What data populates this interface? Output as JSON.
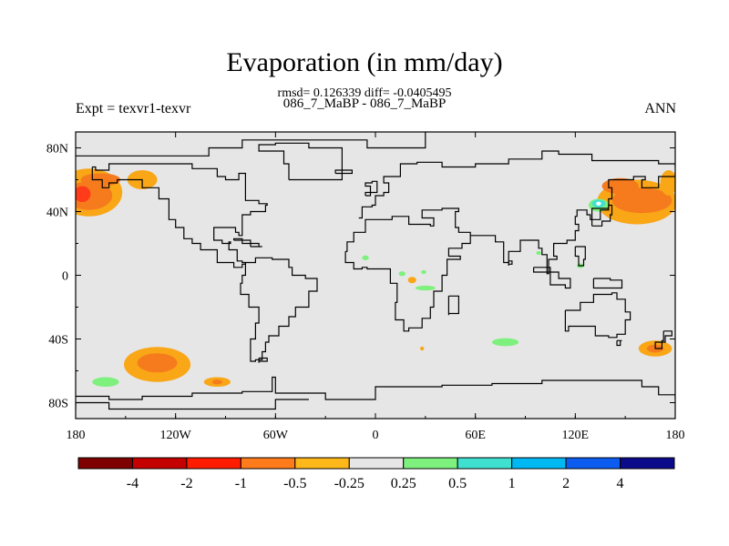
{
  "title": "Evaporation (in mm/day)",
  "stats_line": "rmsd= 0.126339 diff= -0.0405495",
  "subtitle": "086_7_MaBP - 086_7_MaBP",
  "experiment_label": "Expt = texvr1-texvr",
  "season_label": "ANN",
  "map": {
    "lon_range": [
      -180,
      180
    ],
    "lat_range": [
      -90,
      90
    ],
    "land_color": "#e6e6e6",
    "x_ticks": [
      {
        "value": -180,
        "label": "180"
      },
      {
        "value": -120,
        "label": "120W"
      },
      {
        "value": -60,
        "label": "60W"
      },
      {
        "value": 0,
        "label": "0"
      },
      {
        "value": 60,
        "label": "60E"
      },
      {
        "value": 120,
        "label": "120E"
      },
      {
        "value": 180,
        "label": "180"
      }
    ],
    "y_ticks": [
      {
        "value": 80,
        "label": "80N"
      },
      {
        "value": 40,
        "label": "40N"
      },
      {
        "value": 0,
        "label": "0"
      },
      {
        "value": -40,
        "label": "40S"
      },
      {
        "value": -80,
        "label": "80S"
      }
    ],
    "anomalies": [
      {
        "lon": -172,
        "lat": 52,
        "rlon": 20,
        "rlat": 15,
        "color": "#f9a617"
      },
      {
        "lon": -172,
        "lat": 50,
        "rlon": 14,
        "rlat": 9,
        "color": "#f57b1c"
      },
      {
        "lon": -165,
        "lat": 60,
        "rlon": 12,
        "rlat": 4,
        "color": "#f57b1c"
      },
      {
        "lon": -176,
        "lat": 51,
        "rlon": 5,
        "rlat": 5,
        "color": "#ff3b1a"
      },
      {
        "lon": -140,
        "lat": 60,
        "rlon": 9,
        "rlat": 6,
        "color": "#f9a617"
      },
      {
        "lon": -131,
        "lat": -56,
        "rlon": 20,
        "rlat": 11,
        "color": "#f9a617"
      },
      {
        "lon": -131,
        "lat": -55,
        "rlon": 12,
        "rlat": 6,
        "color": "#f57b1c"
      },
      {
        "lon": -162,
        "lat": -67,
        "rlon": 8,
        "rlat": 3,
        "color": "#7ef07e"
      },
      {
        "lon": -95,
        "lat": -67,
        "rlon": 8,
        "rlat": 3,
        "color": "#f9a617"
      },
      {
        "lon": -95,
        "lat": -67,
        "rlon": 3,
        "rlat": 1.5,
        "color": "#f57b1c"
      },
      {
        "lon": 157,
        "lat": 46,
        "rlon": 24,
        "rlat": 14,
        "color": "#f9a617"
      },
      {
        "lon": 160,
        "lat": 47,
        "rlon": 18,
        "rlat": 8,
        "color": "#f57b1c"
      },
      {
        "lon": 147,
        "lat": 56,
        "rlon": 11,
        "rlat": 5,
        "color": "#f57b1c"
      },
      {
        "lon": 176,
        "lat": 58,
        "rlon": 5,
        "rlat": 8,
        "color": "#f9a617"
      },
      {
        "lon": 134,
        "lat": 44,
        "rlon": 6,
        "rlat": 4,
        "color": "#7ef07e"
      },
      {
        "lon": 134,
        "lat": 45,
        "rlon": 4,
        "rlat": 2.5,
        "color": "#40e0d0"
      },
      {
        "lon": 134,
        "lat": 45,
        "rlon": 1.5,
        "rlat": 1.2,
        "color": "#ffffff"
      },
      {
        "lon": 123,
        "lat": 6,
        "rlon": 2,
        "rlat": 1.5,
        "color": "#7ef07e"
      },
      {
        "lon": 168,
        "lat": -46,
        "rlon": 10,
        "rlat": 5,
        "color": "#f9a617"
      },
      {
        "lon": 168,
        "lat": -46,
        "rlon": 5,
        "rlat": 2.5,
        "color": "#f57b1c"
      },
      {
        "lon": 78,
        "lat": -42,
        "rlon": 8,
        "rlat": 2.5,
        "color": "#7ef07e"
      },
      {
        "lon": 22,
        "lat": -3,
        "rlon": 2.5,
        "rlat": 2,
        "color": "#f9a617"
      },
      {
        "lon": 16,
        "lat": 1,
        "rlon": 2,
        "rlat": 1.5,
        "color": "#7ef07e"
      },
      {
        "lon": 30,
        "lat": -8,
        "rlon": 6,
        "rlat": 1.5,
        "color": "#7ef07e"
      },
      {
        "lon": -6,
        "lat": 11,
        "rlon": 2,
        "rlat": 1.5,
        "color": "#7ef07e"
      },
      {
        "lon": 29,
        "lat": 2,
        "rlon": 1.5,
        "rlat": 1.2,
        "color": "#7ef07e"
      },
      {
        "lon": 98,
        "lat": 14,
        "rlon": 1.5,
        "rlat": 1.2,
        "color": "#7ef07e"
      },
      {
        "lon": 28,
        "lat": -46,
        "rlon": 1.2,
        "rlat": 1.2,
        "color": "#f9a617"
      }
    ],
    "coastlines": [
      [
        [
          -180,
          75
        ],
        [
          -150,
          75
        ],
        [
          -110,
          75
        ],
        [
          -100,
          80
        ],
        [
          -80,
          85
        ],
        [
          -50,
          85
        ],
        [
          -30,
          85
        ],
        [
          -15,
          85
        ],
        [
          -5,
          80
        ],
        [
          20,
          80
        ],
        [
          30,
          90
        ]
      ],
      [
        [
          -170,
          68
        ],
        [
          -168,
          66
        ],
        [
          -162,
          66
        ],
        [
          -160,
          70
        ],
        [
          -120,
          70
        ],
        [
          -110,
          67
        ],
        [
          -95,
          62
        ],
        [
          -90,
          60
        ],
        [
          -82,
          64
        ],
        [
          -78,
          52
        ],
        [
          -78,
          47
        ],
        [
          -70,
          45
        ],
        [
          -65,
          44
        ],
        [
          -66,
          40
        ],
        [
          -75,
          38
        ],
        [
          -80,
          30
        ],
        [
          -80,
          25
        ],
        [
          -82,
          27
        ],
        [
          -84,
          30
        ],
        [
          -90,
          30
        ],
        [
          -97,
          27
        ],
        [
          -97,
          22
        ],
        [
          -92,
          20
        ],
        [
          -87,
          21
        ],
        [
          -88,
          16
        ],
        [
          -83,
          15
        ],
        [
          -83,
          9
        ],
        [
          -80,
          8
        ],
        [
          -78,
          7
        ],
        [
          -80,
          5
        ],
        [
          -85,
          8
        ],
        [
          -95,
          16
        ],
        [
          -105,
          20
        ],
        [
          -110,
          23
        ],
        [
          -115,
          30
        ],
        [
          -120,
          35
        ],
        [
          -124,
          40
        ],
        [
          -124,
          48
        ],
        [
          -130,
          55
        ],
        [
          -140,
          60
        ],
        [
          -155,
          58
        ],
        [
          -160,
          55
        ],
        [
          -164,
          60
        ],
        [
          -170,
          68
        ]
      ],
      [
        [
          -78,
          8
        ],
        [
          -72,
          11
        ],
        [
          -62,
          10
        ],
        [
          -52,
          5
        ],
        [
          -50,
          0
        ],
        [
          -42,
          -2
        ],
        [
          -35,
          -5
        ],
        [
          -35,
          -10
        ],
        [
          -40,
          -20
        ],
        [
          -48,
          -26
        ],
        [
          -52,
          -32
        ],
        [
          -58,
          -38
        ],
        [
          -64,
          -42
        ],
        [
          -66,
          -48
        ],
        [
          -68,
          -53
        ],
        [
          -72,
          -54
        ],
        [
          -75,
          -48
        ],
        [
          -75,
          -40
        ],
        [
          -72,
          -30
        ],
        [
          -70,
          -20
        ],
        [
          -76,
          -12
        ],
        [
          -81,
          -5
        ],
        [
          -80,
          0
        ],
        [
          -78,
          8
        ]
      ],
      [
        [
          -52,
          60
        ],
        [
          -45,
          60
        ],
        [
          -20,
          70
        ],
        [
          -20,
          80
        ],
        [
          -40,
          83
        ],
        [
          -60,
          82
        ],
        [
          -70,
          78
        ],
        [
          -55,
          70
        ],
        [
          -52,
          60
        ]
      ],
      [
        [
          -10,
          36
        ],
        [
          -8,
          43
        ],
        [
          -2,
          44
        ],
        [
          0,
          50
        ],
        [
          5,
          52
        ],
        [
          8,
          58
        ],
        [
          5,
          62
        ],
        [
          15,
          70
        ],
        [
          25,
          71
        ],
        [
          40,
          68
        ],
        [
          60,
          70
        ],
        [
          80,
          73
        ],
        [
          100,
          78
        ],
        [
          110,
          76
        ],
        [
          130,
          72
        ],
        [
          150,
          72
        ],
        [
          170,
          70
        ],
        [
          180,
          68
        ]
      ],
      [
        [
          -18,
          15
        ],
        [
          -17,
          21
        ],
        [
          -13,
          27
        ],
        [
          -6,
          35
        ],
        [
          10,
          37
        ],
        [
          20,
          32
        ],
        [
          33,
          31
        ],
        [
          35,
          36
        ],
        [
          28,
          41
        ],
        [
          40,
          42
        ],
        [
          50,
          40
        ],
        [
          48,
          30
        ],
        [
          50,
          27
        ],
        [
          57,
          25
        ],
        [
          57,
          20
        ],
        [
          52,
          17
        ],
        [
          44,
          12
        ],
        [
          50,
          12
        ],
        [
          51,
          10
        ],
        [
          43,
          0
        ],
        [
          40,
          -10
        ],
        [
          35,
          -20
        ],
        [
          33,
          -27
        ],
        [
          28,
          -33
        ],
        [
          20,
          -35
        ],
        [
          17,
          -28
        ],
        [
          12,
          -17
        ],
        [
          13,
          -5
        ],
        [
          9,
          0
        ],
        [
          9,
          4
        ],
        [
          -5,
          5
        ],
        [
          -8,
          4
        ],
        [
          -13,
          8
        ],
        [
          -18,
          15
        ]
      ],
      [
        [
          44,
          -13
        ],
        [
          50,
          -14
        ],
        [
          50,
          -24
        ],
        [
          44,
          -25
        ],
        [
          44,
          -13
        ]
      ],
      [
        [
          57,
          25
        ],
        [
          66,
          25
        ],
        [
          72,
          21
        ],
        [
          77,
          8
        ],
        [
          80,
          15
        ],
        [
          87,
          22
        ],
        [
          92,
          22
        ],
        [
          98,
          17
        ],
        [
          100,
          13
        ],
        [
          103,
          1
        ],
        [
          104,
          10
        ],
        [
          109,
          12
        ],
        [
          107,
          20
        ],
        [
          115,
          22
        ],
        [
          120,
          28
        ],
        [
          122,
          32
        ],
        [
          120,
          37
        ],
        [
          121,
          41
        ],
        [
          127,
          38
        ],
        [
          129,
          35
        ],
        [
          130,
          42
        ],
        [
          140,
          48
        ],
        [
          142,
          55
        ],
        [
          140,
          60
        ],
        [
          155,
          62
        ],
        [
          162,
          60
        ],
        [
          160,
          55
        ],
        [
          170,
          62
        ],
        [
          180,
          65
        ]
      ],
      [
        [
          130,
          31
        ],
        [
          136,
          34
        ],
        [
          141,
          38
        ],
        [
          142,
          44
        ],
        [
          140,
          41
        ],
        [
          135,
          35
        ],
        [
          130,
          31
        ]
      ],
      [
        [
          95,
          5
        ],
        [
          105,
          -6
        ],
        [
          114,
          -8
        ],
        [
          117,
          -2
        ],
        [
          110,
          2
        ],
        [
          100,
          2
        ],
        [
          95,
          5
        ]
      ],
      [
        [
          131,
          -2
        ],
        [
          141,
          -3
        ],
        [
          148,
          -8
        ],
        [
          140,
          -8
        ],
        [
          131,
          -2
        ]
      ],
      [
        [
          114,
          -22
        ],
        [
          123,
          -17
        ],
        [
          131,
          -12
        ],
        [
          137,
          -12
        ],
        [
          142,
          -11
        ],
        [
          145,
          -15
        ],
        [
          150,
          -23
        ],
        [
          153,
          -28
        ],
        [
          150,
          -37
        ],
        [
          145,
          -39
        ],
        [
          140,
          -38
        ],
        [
          132,
          -32
        ],
        [
          116,
          -35
        ],
        [
          114,
          -26
        ],
        [
          114,
          -22
        ]
      ],
      [
        [
          145,
          -41
        ],
        [
          148,
          -41
        ],
        [
          147,
          -44
        ],
        [
          145,
          -41
        ]
      ],
      [
        [
          173,
          -35
        ],
        [
          178,
          -38
        ],
        [
          174,
          -42
        ],
        [
          168,
          -46
        ],
        [
          172,
          -41
        ],
        [
          173,
          -35
        ]
      ],
      [
        [
          -180,
          -76
        ],
        [
          -160,
          -78
        ],
        [
          -140,
          -76
        ],
        [
          -110,
          -74
        ],
        [
          -80,
          -73
        ],
        [
          -62,
          -64
        ],
        [
          -60,
          -74
        ],
        [
          -30,
          -78
        ],
        [
          0,
          -70
        ],
        [
          40,
          -69
        ],
        [
          70,
          -68
        ],
        [
          100,
          -66
        ],
        [
          130,
          -66
        ],
        [
          160,
          -70
        ],
        [
          170,
          -75
        ],
        [
          180,
          -78
        ]
      ],
      [
        [
          -40,
          -78
        ],
        [
          -60,
          -84
        ],
        [
          -120,
          -84
        ],
        [
          -160,
          -80
        ],
        [
          -180,
          -84
        ]
      ],
      [
        [
          -6,
          50
        ],
        [
          -3,
          56
        ],
        [
          -6,
          58
        ],
        [
          -2,
          59
        ],
        [
          1,
          52
        ],
        [
          -6,
          50
        ]
      ],
      [
        [
          -24,
          64
        ],
        [
          -14,
          65
        ],
        [
          -14,
          66
        ],
        [
          -22,
          66
        ],
        [
          -24,
          64
        ]
      ],
      [
        [
          -85,
          22
        ],
        [
          -75,
          20
        ],
        [
          -80,
          23
        ],
        [
          -85,
          22
        ]
      ],
      [
        [
          -75,
          18
        ],
        [
          -68,
          18
        ],
        [
          -70,
          20
        ],
        [
          -75,
          18
        ]
      ],
      [
        [
          120,
          18
        ],
        [
          126,
          10
        ],
        [
          125,
          6
        ],
        [
          122,
          12
        ],
        [
          120,
          18
        ]
      ],
      [
        [
          80,
          9
        ],
        [
          82,
          7
        ],
        [
          80,
          6
        ],
        [
          80,
          9
        ]
      ],
      [
        [
          -70,
          -52
        ],
        [
          -65,
          -54
        ],
        [
          -70,
          -55
        ],
        [
          -70,
          -52
        ]
      ]
    ]
  },
  "colorbar": {
    "colors": [
      "#7e0000",
      "#c40000",
      "#ff1c00",
      "#ff7b1c",
      "#ffb819",
      "#e6e6e6",
      "#7ef07e",
      "#40e0d0",
      "#00b8f2",
      "#0c5cf0",
      "#0a0a8a"
    ],
    "labels": [
      "-4",
      "-2",
      "-1",
      "-0.5",
      "-0.25",
      "0.25",
      "0.5",
      "1",
      "2",
      "4"
    ]
  }
}
